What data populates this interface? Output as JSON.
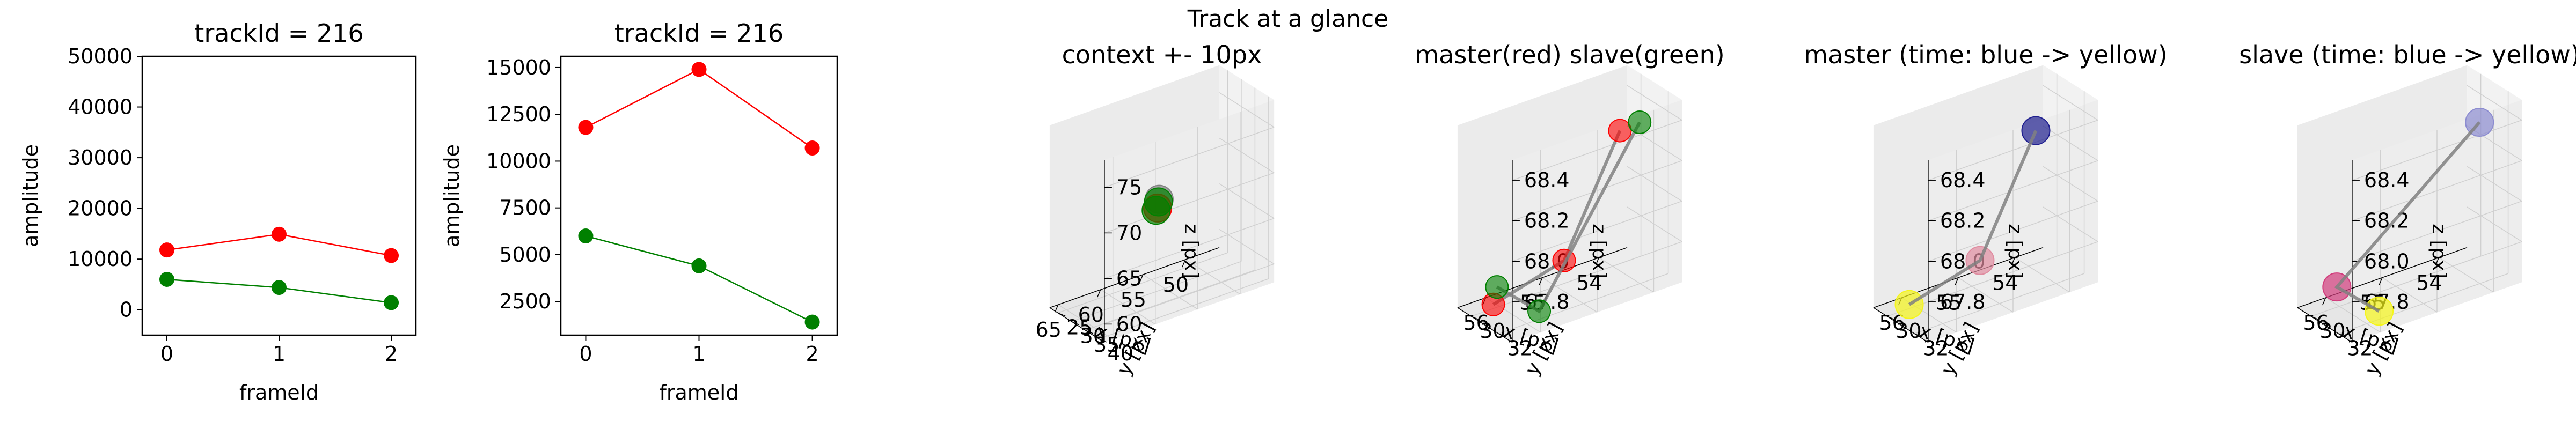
{
  "figure": {
    "suptitle": "Track at a glance"
  },
  "colors": {
    "master": "#ff0000",
    "slave": "#008000",
    "time_start": "#1f1f8f",
    "time_end": "#f5f51a",
    "line3d": "#808080"
  },
  "chart_data": [
    {
      "type": "line",
      "title": "trackId = 216",
      "xlabel": "frameId",
      "ylabel": "amplitude",
      "x": [
        0,
        1,
        2
      ],
      "xticks": [
        "0",
        "1",
        "2"
      ],
      "ylim": [
        -5000,
        50000
      ],
      "yticks": [
        "0",
        "10000",
        "20000",
        "30000",
        "40000",
        "50000"
      ],
      "series": [
        {
          "color": "#ff0000",
          "values": [
            11800,
            14900,
            10700
          ]
        },
        {
          "color": "#008000",
          "values": [
            6000,
            4400,
            1400
          ]
        }
      ]
    },
    {
      "type": "line",
      "title": "trackId = 216",
      "xlabel": "frameId",
      "ylabel": "amplitude",
      "x": [
        0,
        1,
        2
      ],
      "xticks": [
        "0",
        "1",
        "2"
      ],
      "ylim": [
        700,
        15600
      ],
      "yticks": [
        "2500",
        "5000",
        "7500",
        "10000",
        "12500",
        "15000"
      ],
      "series": [
        {
          "color": "#ff0000",
          "values": [
            11800,
            14900,
            10700
          ]
        },
        {
          "color": "#008000",
          "values": [
            6000,
            4400,
            1400
          ]
        }
      ]
    },
    {
      "type": "scatter3d",
      "title": "context +- 10px",
      "xlabel": "x [px]",
      "ylabel": "y [px]",
      "zlabel": "z [px]",
      "xlim": [
        46,
        66
      ],
      "ylim": [
        22,
        42
      ],
      "zlim": [
        58,
        78
      ],
      "xticks": [
        "50",
        "55",
        "60",
        "65"
      ],
      "yticks": [
        "25",
        "30",
        "35",
        "40"
      ],
      "zticks": [
        "60",
        "65",
        "70",
        "75"
      ],
      "points": [
        {
          "x": 56,
          "y": 31,
          "z": 68.3,
          "color": "#808080"
        },
        {
          "x": 56.5,
          "y": 32,
          "z": 67.7,
          "color": "#ff0000"
        },
        {
          "x": 57,
          "y": 33,
          "z": 67.8,
          "color": "#008000"
        },
        {
          "x": 55.6,
          "y": 29.5,
          "z": 67.6,
          "color": "#008000"
        }
      ]
    },
    {
      "type": "scatter3d",
      "title": "master(red) slave(green)",
      "xlabel": "x [px]",
      "ylabel": "y [px]",
      "zlabel": "z [px]",
      "xlim": [
        53.5,
        56.5
      ],
      "ylim": [
        29,
        33
      ],
      "zlim": [
        67.6,
        68.5
      ],
      "xticks": [
        "54",
        "55",
        "56"
      ],
      "yticks": [
        "30",
        "32"
      ],
      "zticks": [
        "67.8",
        "68.0",
        "68.2",
        "68.4"
      ],
      "master": [
        {
          "x": 54.5,
          "y": 32.6,
          "z": 68.43
        },
        {
          "x": 55.1,
          "y": 31.0,
          "z": 67.78
        },
        {
          "x": 56.4,
          "y": 31.2,
          "z": 67.7
        }
      ],
      "slave": [
        {
          "x": 54.2,
          "y": 32.8,
          "z": 68.45
        },
        {
          "x": 56.0,
          "y": 32.9,
          "z": 67.7
        },
        {
          "x": 55.9,
          "y": 29.4,
          "z": 67.66
        }
      ]
    },
    {
      "type": "scatter3d",
      "title": "master (time: blue -> yellow)",
      "xlabel": "x [px]",
      "ylabel": "y [px]",
      "zlabel": "z [px]",
      "xlim": [
        53.5,
        56.5
      ],
      "ylim": [
        29,
        33
      ],
      "zlim": [
        67.6,
        68.5
      ],
      "xticks": [
        "54",
        "55",
        "56"
      ],
      "yticks": [
        "30",
        "32"
      ],
      "zticks": [
        "67.8",
        "68.0",
        "68.2",
        "68.4"
      ],
      "points": [
        {
          "x": 54.5,
          "y": 32.6,
          "z": 68.43,
          "color": "#1f1f8f"
        },
        {
          "x": 55.1,
          "y": 31.0,
          "z": 67.78,
          "color": "#e08ca0"
        },
        {
          "x": 56.4,
          "y": 31.2,
          "z": 67.7,
          "color": "#f5f51a"
        }
      ]
    },
    {
      "type": "scatter3d",
      "title": "slave (time: blue -> yellow)",
      "xlabel": "x [px]",
      "ylabel": "y [px]",
      "zlabel": "z [px]",
      "xlim": [
        53.5,
        56.5
      ],
      "ylim": [
        29,
        33
      ],
      "zlim": [
        67.6,
        68.5
      ],
      "xticks": [
        "54",
        "55",
        "56"
      ],
      "yticks": [
        "30",
        "32"
      ],
      "zticks": [
        "67.8",
        "68.0",
        "68.2",
        "68.4"
      ],
      "points": [
        {
          "x": 54.2,
          "y": 32.8,
          "z": 68.45,
          "color": "#8c8cd0"
        },
        {
          "x": 55.9,
          "y": 29.4,
          "z": 67.66,
          "color": "#d23c7c"
        },
        {
          "x": 56.0,
          "y": 32.9,
          "z": 67.7,
          "color": "#f5f51a"
        }
      ]
    }
  ]
}
